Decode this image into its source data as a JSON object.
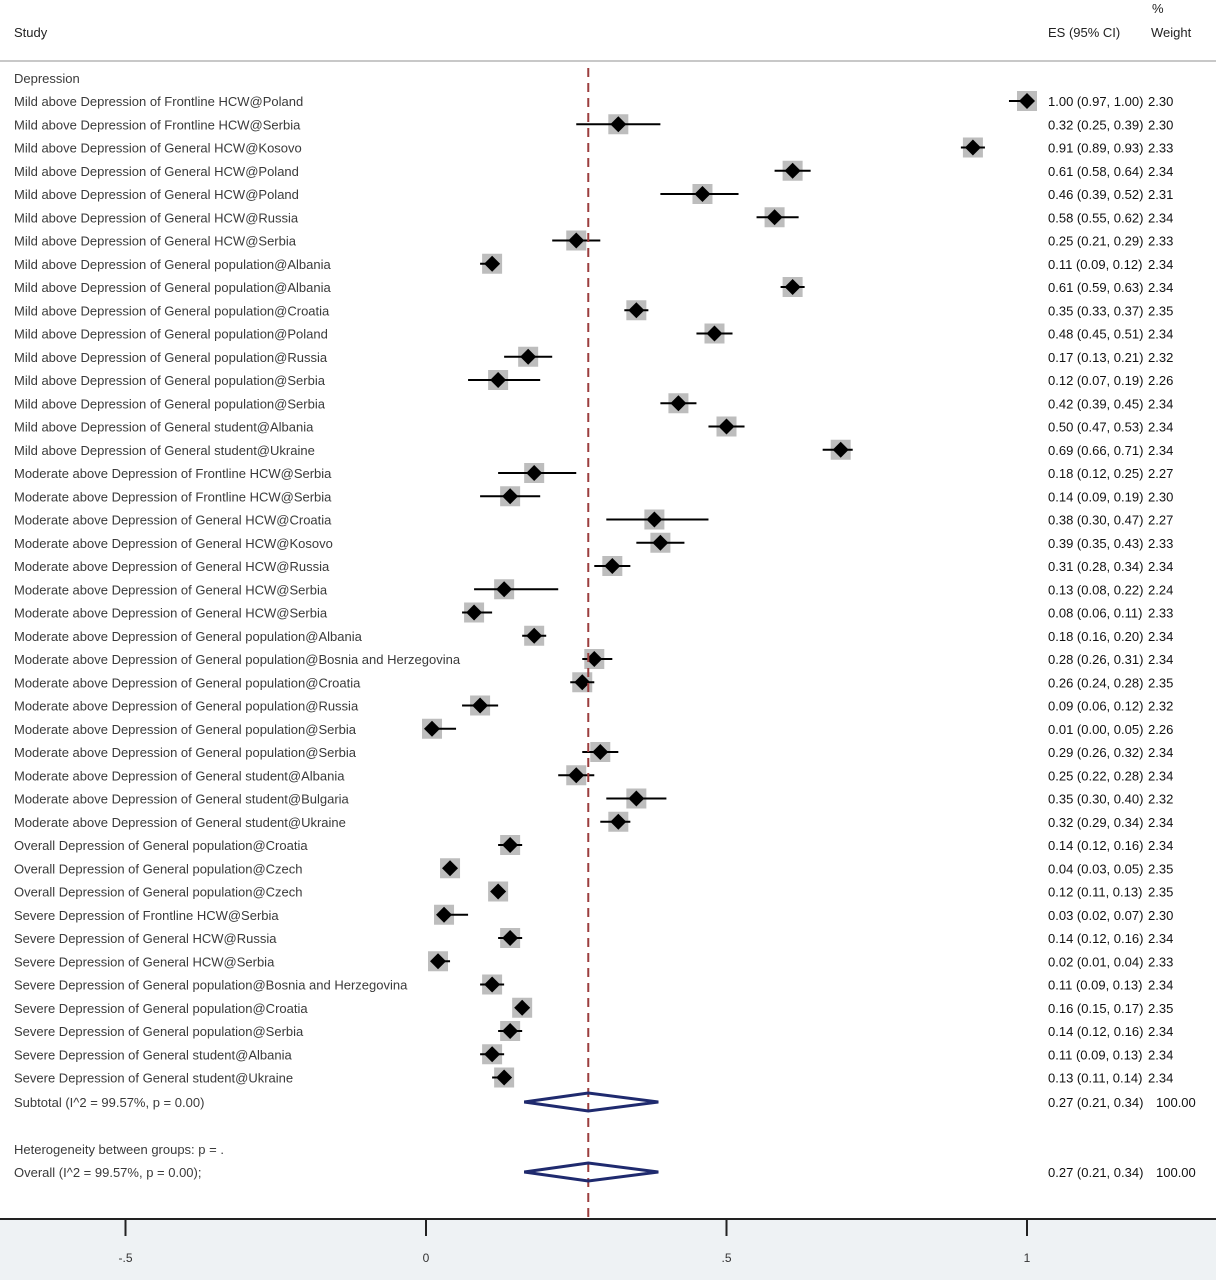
{
  "header": {
    "study": "Study",
    "es": "ES (95% CI)",
    "pct": "%",
    "weight": "Weight"
  },
  "group_label": "Depression",
  "subtotal_label": "Subtotal  (I^2 = 99.57%, p = 0.00)",
  "subtotal_value": "0.27 (0.21, 0.34)",
  "subtotal_weight": "100.00",
  "heterogeneity_label": "Heterogeneity between groups: p = .",
  "overall_label": "Overall  (I^2 = 99.57%, p = 0.00);",
  "overall_value": "0.27 (0.21, 0.34)",
  "overall_weight": "100.00",
  "colors": {
    "marker": "#000000",
    "weight_box": "#bdbdbd",
    "diamond": "#1f2a6e",
    "ref_line": "#9b3d3d",
    "footer_bg": "#eef2f4"
  },
  "chart_data": {
    "type": "forest",
    "xlim": [
      -0.5,
      1
    ],
    "xticks": [
      -0.5,
      0,
      0.5,
      1
    ],
    "xtick_labels": [
      "-.5",
      "0",
      ".5",
      "1"
    ],
    "reference_line": 0.27,
    "subtotal": {
      "es": 0.27,
      "lo": 0.21,
      "hi": 0.34
    },
    "overall": {
      "es": 0.27,
      "lo": 0.21,
      "hi": 0.34
    },
    "studies": [
      {
        "label": "Mild above Depression of Frontline HCW@Poland",
        "es": 1.0,
        "lo": 0.97,
        "hi": 1.0,
        "text": "1.00 (0.97, 1.00)",
        "weight": "2.30"
      },
      {
        "label": "Mild above Depression of Frontline HCW@Serbia",
        "es": 0.32,
        "lo": 0.25,
        "hi": 0.39,
        "text": "0.32 (0.25, 0.39)",
        "weight": "2.30"
      },
      {
        "label": "Mild above Depression of General HCW@Kosovo",
        "es": 0.91,
        "lo": 0.89,
        "hi": 0.93,
        "text": "0.91 (0.89, 0.93)",
        "weight": "2.33"
      },
      {
        "label": "Mild above Depression of General HCW@Poland",
        "es": 0.61,
        "lo": 0.58,
        "hi": 0.64,
        "text": "0.61 (0.58, 0.64)",
        "weight": "2.34"
      },
      {
        "label": "Mild above Depression of General HCW@Poland",
        "es": 0.46,
        "lo": 0.39,
        "hi": 0.52,
        "text": "0.46 (0.39, 0.52)",
        "weight": "2.31"
      },
      {
        "label": "Mild above Depression of General HCW@Russia",
        "es": 0.58,
        "lo": 0.55,
        "hi": 0.62,
        "text": "0.58 (0.55, 0.62)",
        "weight": "2.34"
      },
      {
        "label": "Mild above Depression of General HCW@Serbia",
        "es": 0.25,
        "lo": 0.21,
        "hi": 0.29,
        "text": "0.25 (0.21, 0.29)",
        "weight": "2.33"
      },
      {
        "label": "Mild above Depression of General population@Albania",
        "es": 0.11,
        "lo": 0.09,
        "hi": 0.12,
        "text": "0.11 (0.09, 0.12)",
        "weight": "2.34"
      },
      {
        "label": "Mild above Depression of General population@Albania",
        "es": 0.61,
        "lo": 0.59,
        "hi": 0.63,
        "text": "0.61 (0.59, 0.63)",
        "weight": "2.34"
      },
      {
        "label": "Mild above Depression of General population@Croatia",
        "es": 0.35,
        "lo": 0.33,
        "hi": 0.37,
        "text": "0.35 (0.33, 0.37)",
        "weight": "2.35"
      },
      {
        "label": "Mild above Depression of General population@Poland",
        "es": 0.48,
        "lo": 0.45,
        "hi": 0.51,
        "text": "0.48 (0.45, 0.51)",
        "weight": "2.34"
      },
      {
        "label": "Mild above Depression of General population@Russia",
        "es": 0.17,
        "lo": 0.13,
        "hi": 0.21,
        "text": "0.17 (0.13, 0.21)",
        "weight": "2.32"
      },
      {
        "label": "Mild above Depression of General population@Serbia",
        "es": 0.12,
        "lo": 0.07,
        "hi": 0.19,
        "text": "0.12 (0.07, 0.19)",
        "weight": "2.26"
      },
      {
        "label": "Mild above Depression of General population@Serbia",
        "es": 0.42,
        "lo": 0.39,
        "hi": 0.45,
        "text": "0.42 (0.39, 0.45)",
        "weight": "2.34"
      },
      {
        "label": "Mild above Depression of General student@Albania",
        "es": 0.5,
        "lo": 0.47,
        "hi": 0.53,
        "text": "0.50 (0.47, 0.53)",
        "weight": "2.34"
      },
      {
        "label": "Mild above Depression of General student@Ukraine",
        "es": 0.69,
        "lo": 0.66,
        "hi": 0.71,
        "text": "0.69 (0.66, 0.71)",
        "weight": "2.34"
      },
      {
        "label": "Moderate above Depression of Frontline HCW@Serbia",
        "es": 0.18,
        "lo": 0.12,
        "hi": 0.25,
        "text": "0.18 (0.12, 0.25)",
        "weight": "2.27"
      },
      {
        "label": "Moderate above Depression of Frontline HCW@Serbia",
        "es": 0.14,
        "lo": 0.09,
        "hi": 0.19,
        "text": "0.14 (0.09, 0.19)",
        "weight": "2.30"
      },
      {
        "label": "Moderate above Depression of General HCW@Croatia",
        "es": 0.38,
        "lo": 0.3,
        "hi": 0.47,
        "text": "0.38 (0.30, 0.47)",
        "weight": "2.27"
      },
      {
        "label": "Moderate above Depression of General HCW@Kosovo",
        "es": 0.39,
        "lo": 0.35,
        "hi": 0.43,
        "text": "0.39 (0.35, 0.43)",
        "weight": "2.33"
      },
      {
        "label": "Moderate above Depression of General HCW@Russia",
        "es": 0.31,
        "lo": 0.28,
        "hi": 0.34,
        "text": "0.31 (0.28, 0.34)",
        "weight": "2.34"
      },
      {
        "label": "Moderate above Depression of General HCW@Serbia",
        "es": 0.13,
        "lo": 0.08,
        "hi": 0.22,
        "text": "0.13 (0.08, 0.22)",
        "weight": "2.24"
      },
      {
        "label": "Moderate above Depression of General HCW@Serbia",
        "es": 0.08,
        "lo": 0.06,
        "hi": 0.11,
        "text": "0.08 (0.06, 0.11)",
        "weight": "2.33"
      },
      {
        "label": "Moderate above Depression of General population@Albania",
        "es": 0.18,
        "lo": 0.16,
        "hi": 0.2,
        "text": "0.18 (0.16, 0.20)",
        "weight": "2.34"
      },
      {
        "label": "Moderate above Depression of General population@Bosnia and Herzegovina",
        "es": 0.28,
        "lo": 0.26,
        "hi": 0.31,
        "text": "0.28 (0.26, 0.31)",
        "weight": "2.34"
      },
      {
        "label": "Moderate above Depression of General population@Croatia",
        "es": 0.26,
        "lo": 0.24,
        "hi": 0.28,
        "text": "0.26 (0.24, 0.28)",
        "weight": "2.35"
      },
      {
        "label": "Moderate above Depression of General population@Russia",
        "es": 0.09,
        "lo": 0.06,
        "hi": 0.12,
        "text": "0.09 (0.06, 0.12)",
        "weight": "2.32"
      },
      {
        "label": "Moderate above Depression of General population@Serbia",
        "es": 0.01,
        "lo": 0.0,
        "hi": 0.05,
        "text": "0.01 (0.00, 0.05)",
        "weight": "2.26"
      },
      {
        "label": "Moderate above Depression of General population@Serbia",
        "es": 0.29,
        "lo": 0.26,
        "hi": 0.32,
        "text": "0.29 (0.26, 0.32)",
        "weight": "2.34"
      },
      {
        "label": "Moderate above Depression of General student@Albania",
        "es": 0.25,
        "lo": 0.22,
        "hi": 0.28,
        "text": "0.25 (0.22, 0.28)",
        "weight": "2.34"
      },
      {
        "label": "Moderate above Depression of General student@Bulgaria",
        "es": 0.35,
        "lo": 0.3,
        "hi": 0.4,
        "text": "0.35 (0.30, 0.40)",
        "weight": "2.32"
      },
      {
        "label": "Moderate above Depression of General student@Ukraine",
        "es": 0.32,
        "lo": 0.29,
        "hi": 0.34,
        "text": "0.32 (0.29, 0.34)",
        "weight": "2.34"
      },
      {
        "label": "Overall Depression of General population@Croatia",
        "es": 0.14,
        "lo": 0.12,
        "hi": 0.16,
        "text": "0.14 (0.12, 0.16)",
        "weight": "2.34"
      },
      {
        "label": "Overall Depression of General population@Czech",
        "es": 0.04,
        "lo": 0.03,
        "hi": 0.05,
        "text": "0.04 (0.03, 0.05)",
        "weight": "2.35"
      },
      {
        "label": "Overall Depression of General population@Czech",
        "es": 0.12,
        "lo": 0.11,
        "hi": 0.13,
        "text": "0.12 (0.11, 0.13)",
        "weight": "2.35"
      },
      {
        "label": "Severe Depression of Frontline HCW@Serbia",
        "es": 0.03,
        "lo": 0.02,
        "hi": 0.07,
        "text": "0.03 (0.02, 0.07)",
        "weight": "2.30"
      },
      {
        "label": "Severe Depression of General HCW@Russia",
        "es": 0.14,
        "lo": 0.12,
        "hi": 0.16,
        "text": "0.14 (0.12, 0.16)",
        "weight": "2.34"
      },
      {
        "label": "Severe Depression of General HCW@Serbia",
        "es": 0.02,
        "lo": 0.01,
        "hi": 0.04,
        "text": "0.02 (0.01, 0.04)",
        "weight": "2.33"
      },
      {
        "label": "Severe Depression of General population@Bosnia and Herzegovina",
        "es": 0.11,
        "lo": 0.09,
        "hi": 0.13,
        "text": "0.11 (0.09, 0.13)",
        "weight": "2.34"
      },
      {
        "label": "Severe Depression of General population@Croatia",
        "es": 0.16,
        "lo": 0.15,
        "hi": 0.17,
        "text": "0.16 (0.15, 0.17)",
        "weight": "2.35"
      },
      {
        "label": "Severe Depression of General population@Serbia",
        "es": 0.14,
        "lo": 0.12,
        "hi": 0.16,
        "text": "0.14 (0.12, 0.16)",
        "weight": "2.34"
      },
      {
        "label": "Severe Depression of General student@Albania",
        "es": 0.11,
        "lo": 0.09,
        "hi": 0.13,
        "text": "0.11 (0.09, 0.13)",
        "weight": "2.34"
      },
      {
        "label": "Severe Depression of General student@Ukraine",
        "es": 0.13,
        "lo": 0.11,
        "hi": 0.14,
        "text": "0.13 (0.11, 0.14)",
        "weight": "2.34"
      }
    ]
  }
}
